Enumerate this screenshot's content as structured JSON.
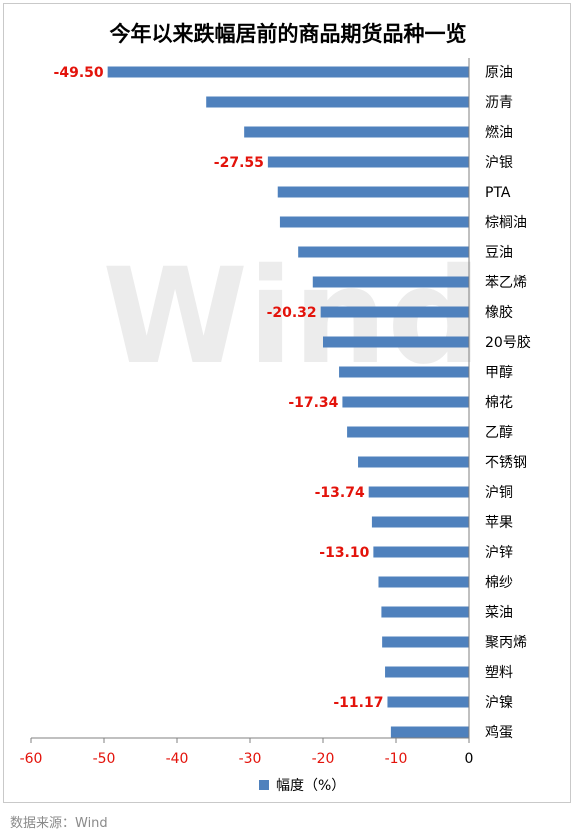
{
  "title": "今年以来跌幅居前的商品期货品种一览",
  "watermark": "Wind",
  "source": "数据来源：Wind",
  "colors": {
    "bar": "#4f81bd",
    "label": "#e3130b",
    "axis": "#808080",
    "tick": "#e3130b",
    "text": "#000000"
  },
  "chart_data": {
    "type": "bar",
    "orientation": "horizontal",
    "title": "今年以来跌幅居前的商品期货品种一览",
    "categories": [
      "原油",
      "沥青",
      "燃油",
      "沪银",
      "PTA",
      "棕榈油",
      "豆油",
      "苯乙烯",
      "橡胶",
      "20号胶",
      "甲醇",
      "棉花",
      "乙醇",
      "不锈钢",
      "沪铜",
      "苹果",
      "沪锌",
      "棉纱",
      "菜油",
      "聚丙烯",
      "塑料",
      "沪镍",
      "鸡蛋"
    ],
    "series": [
      {
        "name": "幅度（%）",
        "values": [
          -49.5,
          -36.0,
          -30.8,
          -27.55,
          -26.2,
          -25.9,
          -23.4,
          -21.4,
          -20.32,
          -20.0,
          -17.8,
          -17.34,
          -16.7,
          -15.2,
          -13.74,
          -13.3,
          -13.1,
          -12.4,
          -12.0,
          -11.9,
          -11.5,
          -11.17,
          -10.7
        ]
      }
    ],
    "data_labels": [
      {
        "category": "原油",
        "text": "-49.50"
      },
      {
        "category": "沪银",
        "text": "-27.55"
      },
      {
        "category": "橡胶",
        "text": "-20.32"
      },
      {
        "category": "棉花",
        "text": "-17.34"
      },
      {
        "category": "沪铜",
        "text": "-13.74"
      },
      {
        "category": "沪锌",
        "text": "-13.10"
      },
      {
        "category": "沪镍",
        "text": "-11.17"
      }
    ],
    "xticks": [
      "-60",
      "-50",
      "-40",
      "-30",
      "-20",
      "-10",
      "0"
    ],
    "xlim": [
      -60,
      0
    ],
    "legend": {
      "label": "幅度（%）",
      "position": "bottom"
    },
    "grid": false
  }
}
